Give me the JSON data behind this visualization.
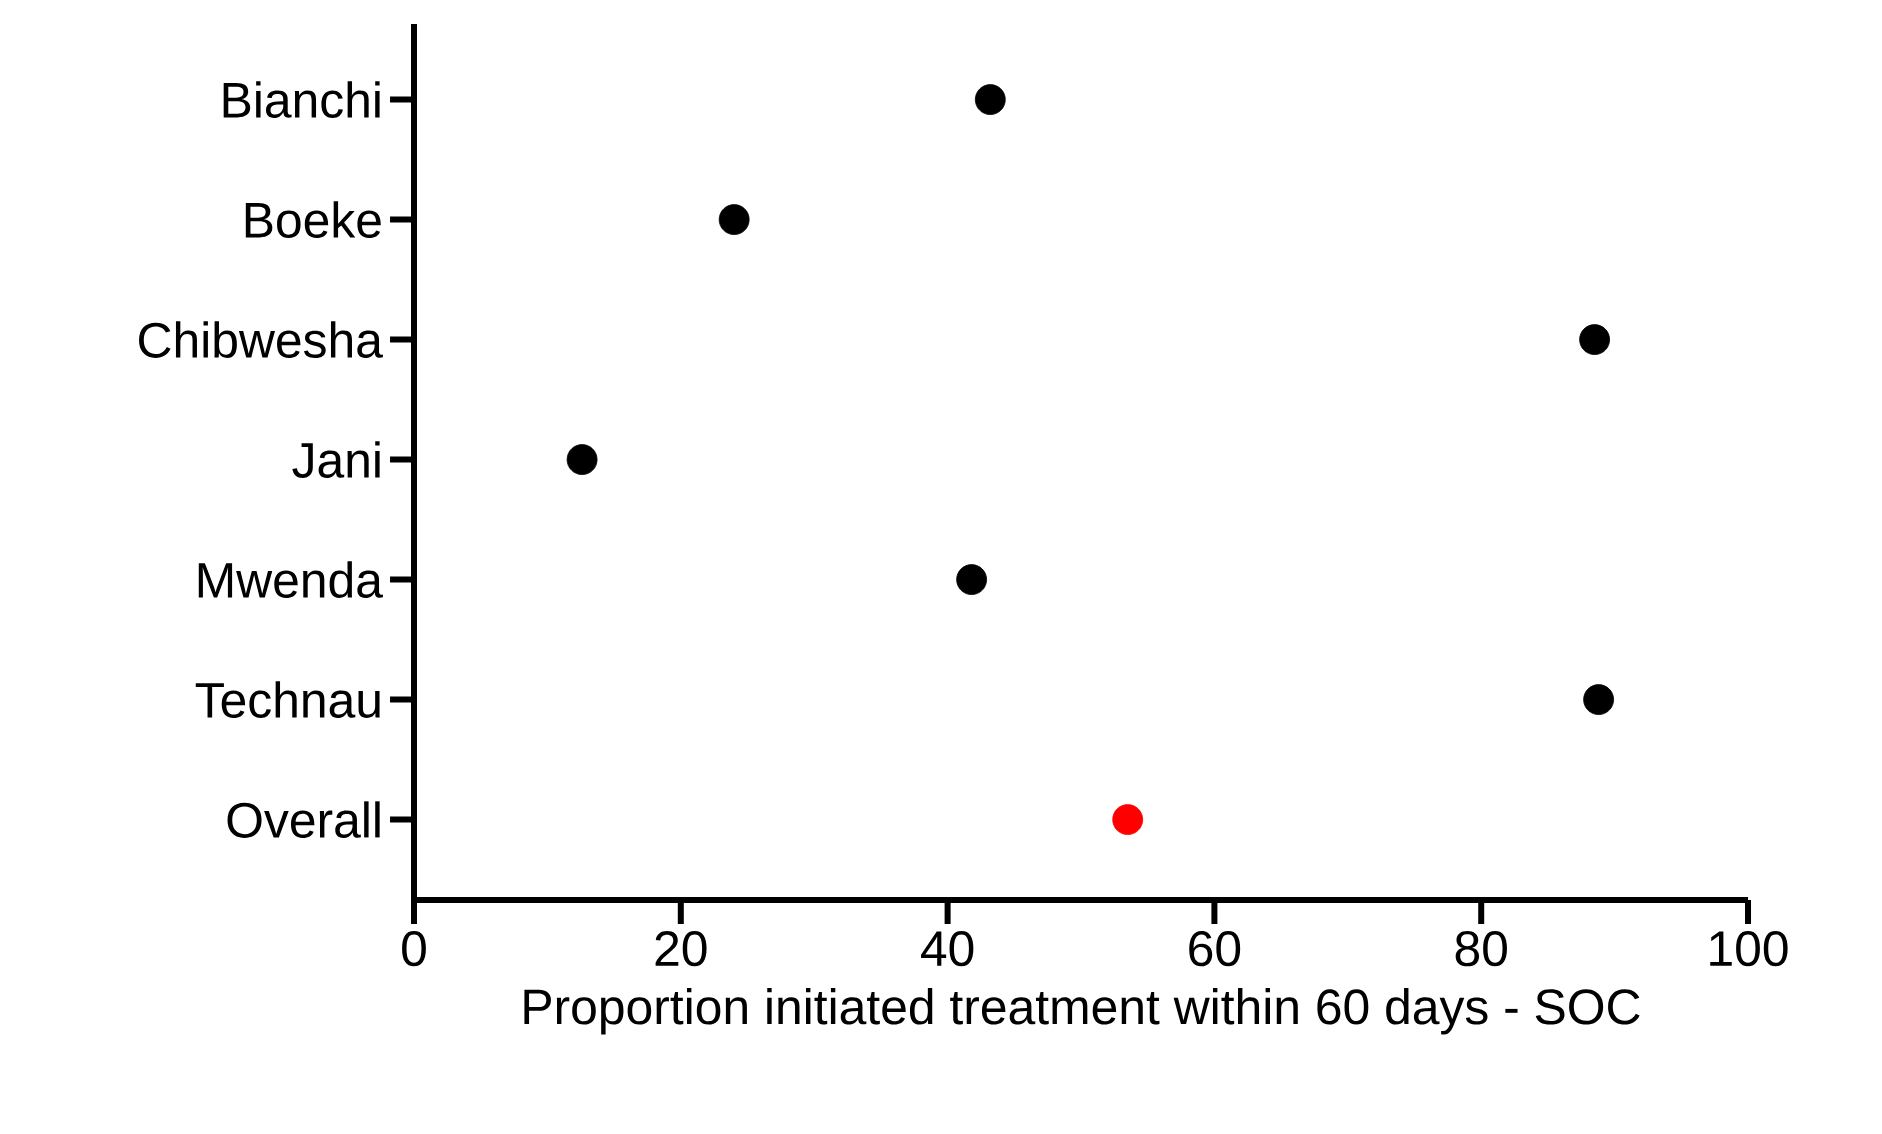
{
  "chart_data": {
    "type": "scatter",
    "orientation": "horizontal",
    "xlabel": "Proportion initiated treatment within 60 days - SOC",
    "categories": [
      "Bianchi",
      "Boeke",
      "Chibwesha",
      "Jani",
      "Mwenda",
      "Technau",
      "Overall"
    ],
    "values": [
      43.2,
      24.0,
      88.5,
      12.6,
      41.8,
      88.8,
      53.5
    ],
    "colors": [
      "#000000",
      "#000000",
      "#000000",
      "#000000",
      "#000000",
      "#000000",
      "#ff0000"
    ],
    "marker": "circle",
    "xlim": [
      0,
      100
    ],
    "xticks": [
      0,
      20,
      40,
      60,
      80,
      100
    ]
  }
}
